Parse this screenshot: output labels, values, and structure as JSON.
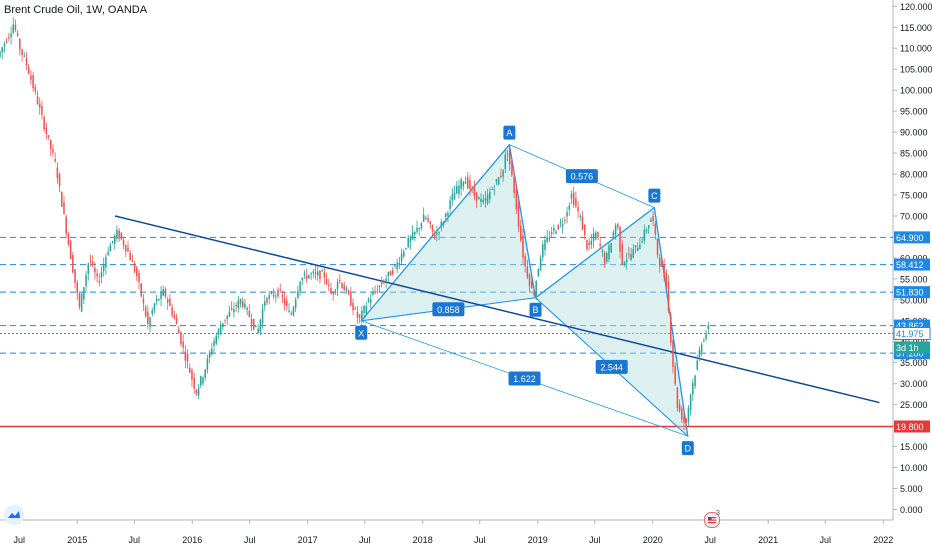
{
  "header": {
    "title": "Brent Crude Oil, 1W, OANDA"
  },
  "logo": {
    "icon": "tradingview-logo-icon"
  },
  "event_marker": {
    "icon": "us-flag-icon",
    "count": "3"
  },
  "colors": {
    "up": "#26a69a",
    "down": "#ef5350",
    "pattern_fill": "#b2dfdb",
    "pattern_line": "#2196f3",
    "pattern_label": "#1976d2",
    "trendline": "#0d47a1",
    "level_line": "#1e88e5",
    "support_line": "#e53935"
  },
  "chart_data": {
    "type": "candlestick",
    "symbol": "Brent Crude Oil",
    "interval": "1W",
    "source": "OANDA",
    "y_axis": {
      "ticks": [
        "120.000",
        "115.000",
        "110.000",
        "105.000",
        "100.000",
        "95.000",
        "90.000",
        "85.000",
        "80.000",
        "75.000",
        "70.000",
        "65.000",
        "60.000",
        "55.000",
        "50.000",
        "45.000",
        "40.000",
        "35.000",
        "30.000",
        "25.000",
        "20.000",
        "15.000",
        "10.000",
        "5.000",
        "0.000"
      ],
      "range": [
        -2.5,
        121.5
      ]
    },
    "x_axis": {
      "ticks": [
        "Jul",
        "2015",
        "Jul",
        "2016",
        "Jul",
        "2017",
        "Jul",
        "2018",
        "Jul",
        "2019",
        "Jul",
        "2020",
        "Jul",
        "2021",
        "Jul",
        "2022"
      ],
      "range": [
        "2014-05-01",
        "2022-02-01"
      ]
    },
    "price_path": [
      [
        "2014-05-01",
        108
      ],
      [
        "2014-05-20",
        111
      ],
      [
        "2014-06-10",
        114
      ],
      [
        "2014-06-20",
        116
      ],
      [
        "2014-07-10",
        110
      ],
      [
        "2014-08-01",
        106
      ],
      [
        "2014-09-01",
        98
      ],
      [
        "2014-10-01",
        90
      ],
      [
        "2014-11-01",
        82
      ],
      [
        "2014-12-01",
        68
      ],
      [
        "2015-01-15",
        48
      ],
      [
        "2015-02-15",
        60
      ],
      [
        "2015-03-15",
        54
      ],
      [
        "2015-04-15",
        62
      ],
      [
        "2015-05-15",
        66
      ],
      [
        "2015-06-15",
        62
      ],
      [
        "2015-07-15",
        56
      ],
      [
        "2015-08-20",
        44
      ],
      [
        "2015-09-10",
        49
      ],
      [
        "2015-10-10",
        52
      ],
      [
        "2015-11-15",
        45
      ],
      [
        "2015-12-15",
        37
      ],
      [
        "2016-01-20",
        28
      ],
      [
        "2016-02-15",
        33
      ],
      [
        "2016-03-15",
        40
      ],
      [
        "2016-04-15",
        45
      ],
      [
        "2016-06-10",
        50
      ],
      [
        "2016-07-15",
        45
      ],
      [
        "2016-08-01",
        42
      ],
      [
        "2016-08-25",
        50
      ],
      [
        "2016-10-10",
        52
      ],
      [
        "2016-11-15",
        46
      ],
      [
        "2016-12-15",
        55
      ],
      [
        "2017-01-15",
        56
      ],
      [
        "2017-03-01",
        56
      ],
      [
        "2017-03-25",
        51
      ],
      [
        "2017-04-15",
        55
      ],
      [
        "2017-05-10",
        52
      ],
      [
        "2017-06-20",
        45
      ],
      [
        "2017-07-20",
        50
      ],
      [
        "2017-09-01",
        54
      ],
      [
        "2017-10-15",
        58
      ],
      [
        "2017-11-15",
        63
      ],
      [
        "2017-12-15",
        66
      ],
      [
        "2018-01-15",
        70
      ],
      [
        "2018-02-15",
        65
      ],
      [
        "2018-03-15",
        69
      ],
      [
        "2018-04-15",
        75
      ],
      [
        "2018-05-20",
        79
      ],
      [
        "2018-06-20",
        75
      ],
      [
        "2018-07-20",
        73
      ],
      [
        "2018-08-20",
        77
      ],
      [
        "2018-09-15",
        80
      ],
      [
        "2018-10-03",
        86
      ],
      [
        "2018-10-25",
        76
      ],
      [
        "2018-11-25",
        59
      ],
      [
        "2018-12-25",
        51
      ],
      [
        "2019-01-20",
        62
      ],
      [
        "2019-02-20",
        66
      ],
      [
        "2019-04-01",
        69
      ],
      [
        "2019-04-25",
        75
      ],
      [
        "2019-05-25",
        69
      ],
      [
        "2019-06-15",
        62
      ],
      [
        "2019-07-10",
        66
      ],
      [
        "2019-08-10",
        59
      ],
      [
        "2019-09-16",
        69
      ],
      [
        "2019-10-01",
        59
      ],
      [
        "2019-11-01",
        61
      ],
      [
        "2019-12-01",
        64
      ],
      [
        "2020-01-06",
        70
      ],
      [
        "2020-01-25",
        60
      ],
      [
        "2020-02-20",
        54
      ],
      [
        "2020-03-10",
        36
      ],
      [
        "2020-03-25",
        25
      ],
      [
        "2020-04-21",
        20
      ],
      [
        "2020-05-05",
        27
      ],
      [
        "2020-05-25",
        34
      ],
      [
        "2020-06-10",
        40
      ],
      [
        "2020-06-25",
        42
      ],
      [
        "2020-07-01",
        43
      ]
    ],
    "horizontal_levels": [
      {
        "price": 64.9,
        "label": "64.900",
        "style": "dashed"
      },
      {
        "price": 58.412,
        "label": "58.412",
        "style": "dashed"
      },
      {
        "price": 51.83,
        "label": "51.830",
        "style": "dashed"
      },
      {
        "price": 43.862,
        "label": "43.862",
        "style": "dashed"
      },
      {
        "price": 41.975,
        "label": "41.975",
        "style": "dotted",
        "current_price": true
      },
      {
        "price": 37.28,
        "label": "37.280",
        "style": "dashed"
      },
      {
        "price": 19.8,
        "label": "19.800",
        "style": "solid",
        "color_key": "support_line"
      }
    ],
    "countdown_label": "3d 1h",
    "trendline": {
      "from": [
        "2015-05-01",
        70
      ],
      "to": [
        "2021-12-20",
        25.5
      ]
    },
    "harmonic_pattern": {
      "points": [
        {
          "label": "X",
          "date": "2017-06-20",
          "price": 45
        },
        {
          "label": "A",
          "date": "2018-10-03",
          "price": 87
        },
        {
          "label": "B",
          "date": "2018-12-25",
          "price": 50.5
        },
        {
          "label": "C",
          "date": "2020-01-06",
          "price": 72
        },
        {
          "label": "D",
          "date": "2020-04-21",
          "price": 17.5
        }
      ],
      "ratios": [
        {
          "label": "0.576",
          "between": [
            "A",
            "C"
          ]
        },
        {
          "label": "0.858",
          "between": [
            "X",
            "B"
          ]
        },
        {
          "label": "2.544",
          "between": [
            "B",
            "D"
          ]
        },
        {
          "label": "1.622",
          "between": [
            "X",
            "D"
          ]
        }
      ]
    }
  }
}
